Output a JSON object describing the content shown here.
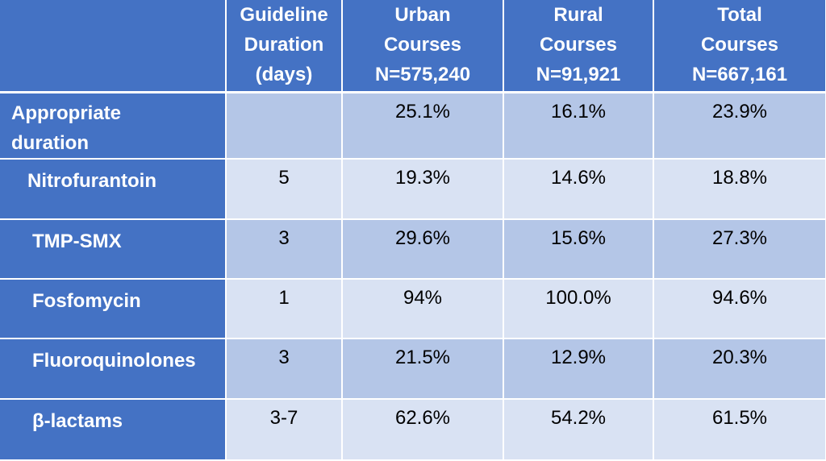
{
  "headers": {
    "col0": "",
    "guideline": [
      "Guideline",
      "Duration",
      "(days)"
    ],
    "urban": [
      "Urban",
      "Courses",
      "N=575,240"
    ],
    "rural": [
      "Rural",
      "Courses",
      "N=91,921"
    ],
    "total": [
      "Total",
      "Courses",
      "N=667,161"
    ]
  },
  "rows": [
    {
      "label": [
        "Appropriate",
        "duration"
      ],
      "guideline": "",
      "urban": "25.1%",
      "rural": "16.1%",
      "total": "23.9%"
    },
    {
      "label": [
        "Nitrofurantoin"
      ],
      "guideline": "5",
      "urban": "19.3%",
      "rural": "14.6%",
      "total": "18.8%"
    },
    {
      "label": [
        "TMP-SMX"
      ],
      "guideline": "3",
      "urban": "29.6%",
      "rural": "15.6%",
      "total": "27.3%"
    },
    {
      "label": [
        "Fosfomycin"
      ],
      "guideline": "1",
      "urban": "94%",
      "rural": "100.0%",
      "total": "94.6%"
    },
    {
      "label": [
        "Fluoroquinolones"
      ],
      "guideline": "3",
      "urban": "21.5%",
      "rural": "12.9%",
      "total": "20.3%"
    },
    {
      "label": [
        "β-lactams"
      ],
      "guideline": "3-7",
      "urban": "62.6%",
      "rural": "54.2%",
      "total": "61.5%"
    }
  ],
  "colors": {
    "header_bg": "#4472c4",
    "row_dark": "#b4c6e7",
    "row_light": "#d9e2f3"
  }
}
